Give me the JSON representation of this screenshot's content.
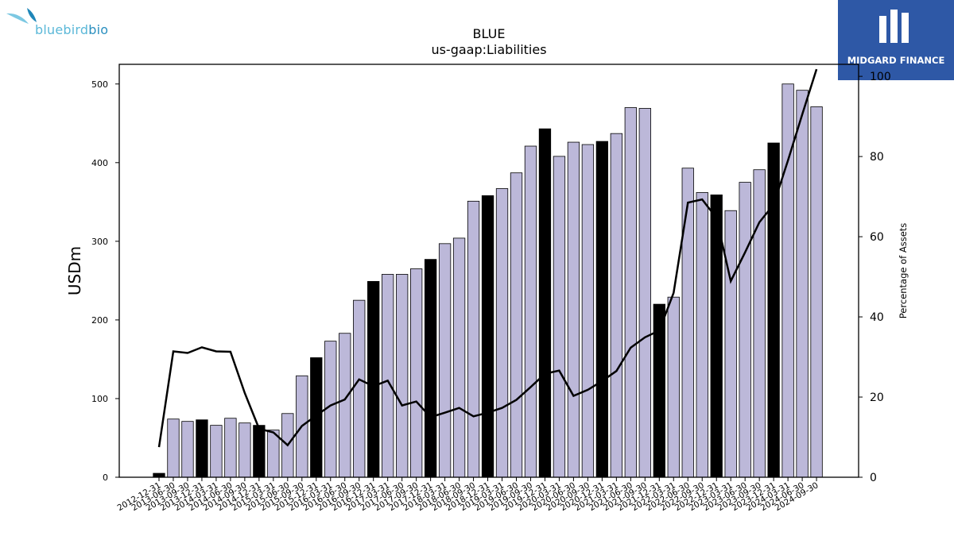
{
  "logos": {
    "left_text_a": "bluebird",
    "left_text_b": "bio",
    "left_color_a": "#5bb8d8",
    "left_color_b": "#2a8fbf",
    "right_text": "MIDGARD FINANCE",
    "right_bg": "#2e58a6"
  },
  "chart_data": {
    "type": "bar",
    "title": "BLUE",
    "subtitle": "us-gaap:Liabilities",
    "ylabel": "USDm",
    "y2label": "Percentage of Assets",
    "ylim": [
      0,
      525
    ],
    "y2lim": [
      0,
      103
    ],
    "yticks": [
      0,
      100,
      200,
      300,
      400,
      500
    ],
    "y2ticks": [
      0,
      20,
      40,
      60,
      80,
      100
    ],
    "grid": false,
    "bar_color": "#bcb8d9",
    "highlight_color": "#000000",
    "line_color": "#000000",
    "categories": [
      "2012-12-31",
      "2013-06-30",
      "2013-09-30",
      "2013-12-31",
      "2014-03-31",
      "2014-06-30",
      "2014-09-30",
      "2014-12-31",
      "2015-03-31",
      "2015-06-30",
      "2015-09-30",
      "2015-12-31",
      "2016-03-31",
      "2016-06-30",
      "2016-09-30",
      "2016-12-31",
      "2017-03-31",
      "2017-06-30",
      "2017-09-30",
      "2017-12-31",
      "2018-03-31",
      "2018-06-30",
      "2018-09-30",
      "2018-12-31",
      "2019-03-31",
      "2019-06-30",
      "2019-09-30",
      "2019-12-31",
      "2020-03-31",
      "2020-06-30",
      "2020-09-30",
      "2020-12-31",
      "2021-03-31",
      "2021-06-30",
      "2021-09-30",
      "2021-12-31",
      "2022-03-31",
      "2022-06-30",
      "2022-09-30",
      "2022-12-31",
      "2023-03-31",
      "2023-06-30",
      "2023-09-30",
      "2023-12-31",
      "2024-03-31",
      "2024-06-30",
      "2024-09-30"
    ],
    "highlight": [
      true,
      false,
      false,
      true,
      false,
      false,
      false,
      true,
      false,
      false,
      false,
      true,
      false,
      false,
      false,
      true,
      false,
      false,
      false,
      true,
      false,
      false,
      false,
      true,
      false,
      false,
      false,
      true,
      false,
      false,
      false,
      true,
      false,
      false,
      false,
      true,
      false,
      false,
      false,
      true,
      false,
      false,
      false,
      true,
      false,
      false,
      false
    ],
    "series": [
      {
        "name": "Liabilities",
        "axis": "left",
        "values": [
          5,
          74,
          71,
          73,
          66,
          75,
          69,
          66,
          60,
          81,
          129,
          152,
          173,
          183,
          225,
          249,
          258,
          258,
          265,
          277,
          297,
          304,
          351,
          358,
          367,
          387,
          421,
          443,
          408,
          426,
          423,
          427,
          437,
          470,
          469,
          220,
          229,
          393,
          362,
          359,
          339,
          375,
          391,
          425,
          500,
          492,
          471
        ]
      },
      {
        "name": "Percentage of Assets",
        "axis": "right",
        "values": [
          7.5,
          31.4,
          31.0,
          32.4,
          31.4,
          31.3,
          21.0,
          12.1,
          11.2,
          8.0,
          12.8,
          15.4,
          17.9,
          19.4,
          24.4,
          22.7,
          24.1,
          17.9,
          18.9,
          15.0,
          16.1,
          17.3,
          15.2,
          16.1,
          17.3,
          19.3,
          22.5,
          25.8,
          26.6,
          20.3,
          21.8,
          24.0,
          26.5,
          32.3,
          34.9,
          36.6,
          46.0,
          68.5,
          69.3,
          64.7,
          48.9,
          56.1,
          63.6,
          68.0,
          79.0,
          90.5,
          101.8
        ]
      }
    ]
  }
}
